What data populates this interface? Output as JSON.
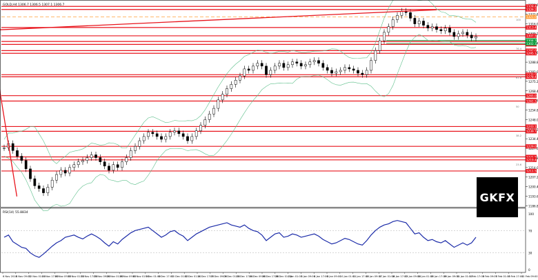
{
  "chart_data": [
    {
      "type": "candlestick",
      "header": "GOLD,H4",
      "ohlc_readout": "1306.7 1306.5 1307.1 1306.7",
      "y_range": [
        1186,
        1330
      ],
      "price_ticks": [
        1329.6,
        1322.8,
        1316.0,
        1309.2,
        1302.4,
        1295.6,
        1288.8,
        1282.0,
        1275.2,
        1268.4,
        1261.6,
        1254.8,
        1248.0,
        1241.2,
        1234.4,
        1227.6,
        1220.8,
        1214.0,
        1207.2,
        1200.4,
        1193.6,
        1186.8
      ],
      "time_labels": [
        "6 Nov 2018",
        "8 Nov 09:00",
        "12 Nov 01:00",
        "14 Nov 17:00",
        "16 Nov 09:00",
        "20 Nov 01:00",
        "21 Nov 17:00",
        "23 Nov 09:00",
        "27 Nov 01:00",
        "28 Nov 17:00",
        "30 Nov 09:00",
        "4 Dec 01:00",
        "5 Dec 17:00",
        "7 Dec 09:00",
        "11 Dec 01:00",
        "12 Dec 17:00",
        "14 Dec 09:00",
        "18 Dec 01:00",
        "19 Dec 17:00",
        "21 Dec 09:00",
        "25 Dec 01:00",
        "26 Dec 17:00",
        "28 Dec 09:00",
        "1 Jan 01:00",
        "2 Jan 17:00",
        "4 Jan 09:00",
        "8 Jan 01:00",
        "9 Jan 17:00",
        "11 Jan 09:00",
        "15 Jan 01:00",
        "16 Jan 17:00",
        "18 Jan 09:00",
        "22 Jan 01:00",
        "23 Jan 17:00",
        "25 Jan 09:00",
        "29 Jan 01:00",
        "30 Jan 17:00",
        "1 Feb 09:00",
        "5 Feb 01:00",
        "6 Feb 17:00",
        "8 Feb 09:00",
        "12 Feb 01:00"
      ],
      "time_labels_shown": [
        "6 Nov 2018",
        "8 Nov 09:00",
        "12 Nov 01:00",
        "14 Nov 17:00",
        "16 Nov 09:00",
        "20 Nov 01:00",
        "21 Nov 17:00",
        "23 Nov 09:00",
        "26 Nov 01:00",
        "28 Nov 09:00",
        "30 Nov 01:00",
        "5 Dec 01:00",
        "6 Dec 17:00",
        "10 Dec 01:00",
        "12 Dec 01:00",
        "14 Dec 17:00",
        "17 Dec 09:00",
        "19 Dec 01:00",
        "20 Dec 17:00",
        "24 Dec 09:00",
        "26 Dec 17:00",
        "28 Dec 01:00",
        "2 Jan 01:00",
        "3 Jan 09:00",
        "4 Jan 17:00",
        "8 Jan 09:00",
        "10 Jan 01:00",
        "11 Jan 17:00",
        "15 Jan 09:00",
        "17 Jan 01:00",
        "18 Jan 17:00",
        "22 Jan 09:00",
        "24 Jan 01:00",
        "25 Jan 17:00",
        "29 Jan 09:00",
        "31 Jan 01:00",
        "1 Feb 17:00",
        "5 Feb 09:00",
        "7 Feb 01:00",
        "8 Feb 17:00",
        "12 Feb 09:00"
      ],
      "closes": [
        1228,
        1231,
        1226,
        1222,
        1219,
        1213,
        1206,
        1201,
        1199,
        1196,
        1200,
        1205,
        1209,
        1212,
        1210,
        1214,
        1216,
        1218,
        1219,
        1221,
        1223,
        1221,
        1218,
        1215,
        1212,
        1216,
        1214,
        1218,
        1221,
        1226,
        1229,
        1233,
        1236,
        1239,
        1238,
        1236,
        1234,
        1236,
        1239,
        1240,
        1238,
        1236,
        1233,
        1236,
        1240,
        1244,
        1248,
        1252,
        1256,
        1262,
        1266,
        1270,
        1273,
        1276,
        1279,
        1284,
        1283,
        1286,
        1288,
        1286,
        1280,
        1283,
        1286,
        1288,
        1285,
        1287,
        1289,
        1288,
        1286,
        1287,
        1289,
        1290,
        1288,
        1285,
        1283,
        1281,
        1282,
        1283,
        1285,
        1284,
        1283,
        1281,
        1280,
        1283,
        1290,
        1297,
        1304,
        1310,
        1314,
        1319,
        1322,
        1325,
        1324,
        1320,
        1316,
        1318,
        1315,
        1313,
        1314,
        1312,
        1311,
        1313,
        1310,
        1307,
        1309,
        1310,
        1308,
        1306,
        1307
      ],
      "bands_closes_envelope": "Bollinger-style bands around price",
      "horizontal_levels": [
        {
          "price": 1328.4,
          "label": "1328.4",
          "color": "#e8141c"
        },
        {
          "price": 1326.2,
          "label": "1326.2",
          "color": "#e8141c"
        },
        {
          "price": 1321.0,
          "label": "1321.0",
          "color": "#ff9d3a",
          "style": "dashed"
        },
        {
          "price": 1313.4,
          "label": "1313.4",
          "color": "#e8141c"
        },
        {
          "price": 1307.5,
          "label": "1307.5",
          "color": "#e8141c"
        },
        {
          "price": 1303.5,
          "label": "1303.5",
          "color": "#e8141c"
        },
        {
          "price": 1301.4,
          "label": "1301.4",
          "color": "#e8141c"
        },
        {
          "price": 1297.0,
          "label": "1297.0",
          "color": "#e8141c"
        },
        {
          "price": 1295.1,
          "label": "1295.1",
          "color": "#e8141c"
        },
        {
          "price": 1279.9,
          "label": "1279.9",
          "color": "#e8141c"
        },
        {
          "price": 1278.4,
          "label": "1278.4",
          "color": "#e8141c"
        },
        {
          "price": 1265.0,
          "label": "1265.0",
          "color": "#e8141c"
        },
        {
          "price": 1261.2,
          "label": "1261.2",
          "color": "#e8141c"
        },
        {
          "price": 1243.1,
          "label": "1243.1",
          "color": "#e8141c"
        },
        {
          "price": 1239.7,
          "label": "1239.7",
          "color": "#e8141c"
        },
        {
          "price": 1229.0,
          "label": "1229.0",
          "color": "#e8141c"
        },
        {
          "price": 1221.5,
          "label": "1221.5",
          "color": "#e8141c"
        },
        {
          "price": 1219.4,
          "label": "1219.4",
          "color": "#e8141c"
        },
        {
          "price": 1211.5,
          "label": "1211.5",
          "color": "#e8141c"
        }
      ],
      "green_levels": [
        {
          "price": 1304.2,
          "label": "1304.2",
          "color": "#0a9a3a"
        },
        {
          "price": 1302.1,
          "label": "1302.1",
          "color": "#0a9a3a"
        }
      ],
      "trendlines": [
        {
          "from": [
            "8 Nov 09:00",
            1193.4
          ],
          "to": [
            "12 Feb 09:00",
            1305.5
          ],
          "color": "#e8141c"
        },
        {
          "from": [
            "25 Jan 09:00",
            1326.0
          ],
          "to": [
            "12 Feb 09:00",
            1311.5
          ],
          "color": "#e8141c"
        }
      ],
      "fib_labels": [
        "100",
        "76.4",
        "61.8",
        "50",
        "38.2",
        "23.6",
        "0"
      ],
      "grid": false
    },
    {
      "type": "line",
      "title": "RSI(14) 55.8834",
      "y_range": [
        0,
        100
      ],
      "y_ticks": [
        100,
        70,
        30,
        0
      ],
      "series": [
        {
          "values": [
            58,
            62,
            50,
            45,
            40,
            38,
            30,
            25,
            22,
            28,
            35,
            42,
            48,
            52,
            58,
            60,
            62,
            58,
            55,
            60,
            64,
            60,
            55,
            48,
            42,
            50,
            46,
            54,
            60,
            66,
            70,
            72,
            74,
            76,
            70,
            64,
            58,
            62,
            68,
            70,
            64,
            60,
            52,
            58,
            64,
            68,
            72,
            76,
            78,
            80,
            82,
            84,
            80,
            78,
            76,
            80,
            74,
            70,
            68,
            62,
            52,
            58,
            64,
            66,
            58,
            60,
            64,
            62,
            58,
            60,
            62,
            64,
            60,
            54,
            50,
            46,
            48,
            52,
            56,
            54,
            50,
            46,
            44,
            52,
            62,
            70,
            76,
            80,
            82,
            86,
            88,
            86,
            84,
            74,
            64,
            66,
            58,
            52,
            54,
            50,
            48,
            52,
            46,
            40,
            44,
            48,
            44,
            48,
            58
          ],
          "color": "#1a2aa8"
        }
      ],
      "levels": [
        70,
        30
      ]
    }
  ],
  "logo_text": "GKFX"
}
